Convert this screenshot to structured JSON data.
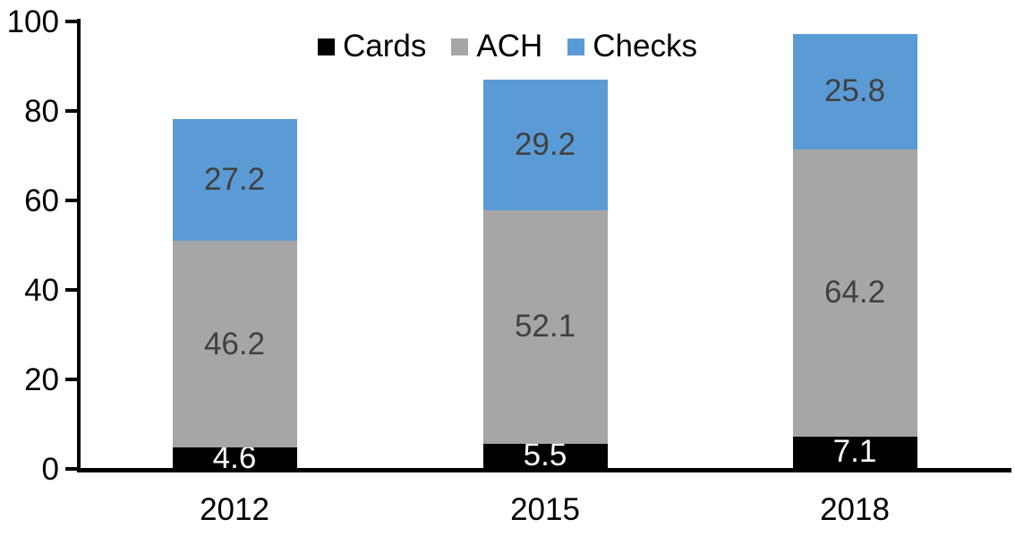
{
  "chart_data": {
    "type": "bar",
    "stacked": true,
    "title": "",
    "xlabel": "",
    "ylabel": "",
    "categories": [
      "2012",
      "2015",
      "2018"
    ],
    "series": [
      {
        "name": "Cards",
        "color": "#000000",
        "label_color": "#ffffff",
        "values": [
          4.6,
          5.5,
          7.1
        ]
      },
      {
        "name": "ACH",
        "color": "#A6A6A6",
        "label_color": "#404040",
        "values": [
          46.2,
          52.1,
          64.2
        ]
      },
      {
        "name": "Checks",
        "color": "#5B9BD5",
        "label_color": "#404040",
        "values": [
          27.2,
          29.2,
          25.8
        ]
      }
    ],
    "yticks": [
      0,
      20,
      40,
      60,
      80,
      100
    ],
    "ylim": [
      0,
      100
    ],
    "legend_position": "top-center",
    "grid": false,
    "axis_color": "#000000",
    "background_color": "#ffffff"
  }
}
